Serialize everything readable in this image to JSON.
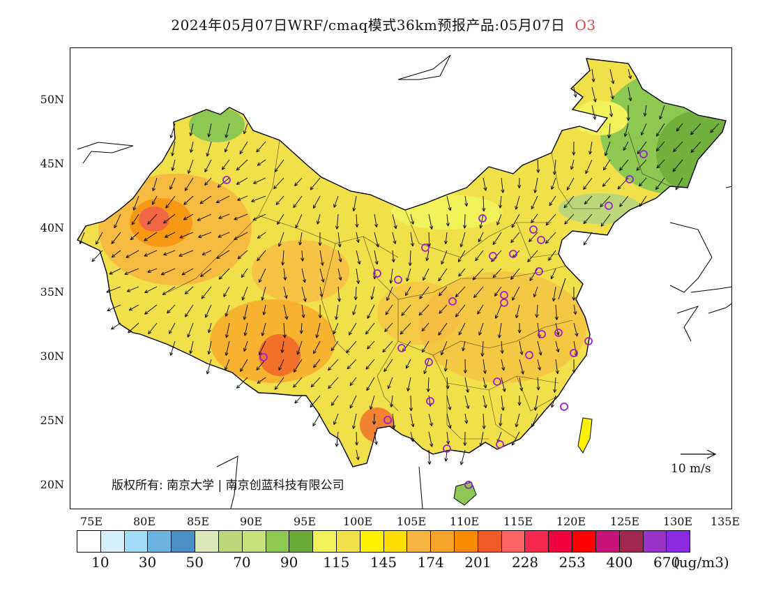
{
  "title": {
    "main": "2024年05月07日WRF/cmaq模式36km预报产品:05月07日",
    "species": "O3",
    "species_color": "#e0403a"
  },
  "map": {
    "projection": "lat-lon",
    "lon_range": [
      73,
      135
    ],
    "lat_range": [
      18,
      54
    ],
    "lat_labels": [
      "50N",
      "45N",
      "40N",
      "35N",
      "30N",
      "25N",
      "20N"
    ],
    "lon_labels": [
      "75E",
      "80E",
      "85E",
      "90E",
      "95E",
      "100E",
      "105E",
      "110E",
      "115E",
      "120E",
      "125E",
      "130E",
      "135E"
    ],
    "wind_vectors": "black arrows showing mostly southward / south-westward flow",
    "station_marker_color": "#9b1fd1",
    "copyright": "版权所有: 南京大学 | 南京创蓝科技有限公司",
    "wind_reference": "10 m/s"
  },
  "colorbar": {
    "colors": [
      "#ffffff",
      "#d6f0fb",
      "#a0dcf5",
      "#6cb3e0",
      "#4a90c4",
      "#dde9b8",
      "#bcd67a",
      "#c7e27c",
      "#8dc852",
      "#6aaa38",
      "#f2f25a",
      "#f2e04a",
      "#fff200",
      "#ffdc00",
      "#f8b440",
      "#f8a428",
      "#f88a00",
      "#f05a28",
      "#ff6464",
      "#f52850",
      "#f0003c",
      "#ff0000",
      "#c8147a",
      "#a02850",
      "#9b32c8",
      "#8a2be2"
    ],
    "tick_labels": [
      "10",
      "30",
      "50",
      "70",
      "90",
      "115",
      "145",
      "174",
      "201",
      "228",
      "253",
      "400",
      "670"
    ],
    "unit": "(ug/m3)"
  }
}
